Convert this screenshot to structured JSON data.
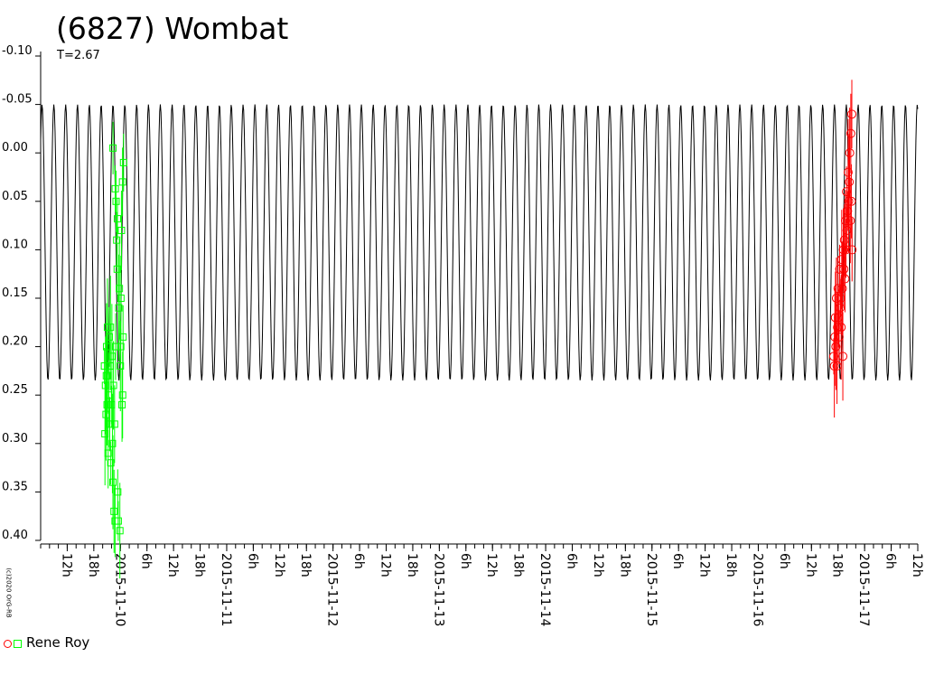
{
  "chart_data": {
    "type": "scatter",
    "title": "(6827) Wombat",
    "subtitle": "T=2.67",
    "copyright": "(c)2020 OrG-RB",
    "y_inverted": true,
    "ylim": [
      -0.1,
      0.4
    ],
    "y_ticks": [
      "-0.10",
      "-0.05",
      "0.00",
      "0.05",
      "0.10",
      "0.15",
      "0.20",
      "0.25",
      "0.30",
      "0.35",
      "0.40"
    ],
    "xlim": [
      "2015-11-09T06:00",
      "2015-11-17T12:00"
    ],
    "x_tick_labels": [
      "12h",
      "18h",
      "2015-11-10",
      "6h",
      "12h",
      "18h",
      "2015-11-11",
      "6h",
      "12h",
      "18h",
      "2015-11-12",
      "6h",
      "12h",
      "18h",
      "2015-11-13",
      "6h",
      "12h",
      "18h",
      "2015-11-14",
      "6h",
      "12h",
      "18h",
      "2015-11-15",
      "6h",
      "12h",
      "18h",
      "2015-11-16",
      "6h",
      "12h",
      "18h",
      "2015-11-17",
      "6h",
      "12h"
    ],
    "model_curve": {
      "period_hours": 2.67,
      "amplitude_min": -0.05,
      "amplitude_max": 0.235,
      "minimum_at": "2015-11-09T23:40",
      "color": "#000000"
    },
    "legend": {
      "label": "Rene Roy"
    },
    "series": [
      {
        "marker": "square",
        "color": "#00ff00",
        "points": [
          [
            "2015-11-09T20:24",
            0.22
          ],
          [
            "2015-11-09T20:31",
            0.29
          ],
          [
            "2015-11-09T20:38",
            0.24
          ],
          [
            "2015-11-09T20:46",
            0.27
          ],
          [
            "2015-11-09T20:53",
            0.2
          ],
          [
            "2015-11-09T21:00",
            0.26
          ],
          [
            "2015-11-09T21:07",
            0.23
          ],
          [
            "2015-11-09T21:14",
            0.31
          ],
          [
            "2015-11-09T21:22",
            0.25
          ],
          [
            "2015-11-09T21:29",
            0.19
          ],
          [
            "2015-11-09T21:36",
            0.28
          ],
          [
            "2015-11-09T21:43",
            0.22
          ],
          [
            "2015-11-09T21:50",
            0.32
          ],
          [
            "2015-11-09T21:58",
            0.26
          ],
          [
            "2015-11-09T22:05",
            0.21
          ],
          [
            "2015-11-09T22:12",
            0.3
          ],
          [
            "2015-11-09T22:19",
            0.34
          ],
          [
            "2015-11-09T22:26",
            0.24
          ],
          [
            "2015-11-09T22:34",
            0.37
          ],
          [
            "2015-11-09T22:41",
            0.28
          ],
          [
            "2015-11-09T22:48",
            0.38
          ],
          [
            "2015-11-09T22:55",
            0.2
          ],
          [
            "2015-11-09T23:02",
            0.05
          ],
          [
            "2015-11-09T23:10",
            0.09
          ],
          [
            "2015-11-09T23:17",
            0.12
          ],
          [
            "2015-11-09T23:24",
            0.35
          ],
          [
            "2015-11-09T23:31",
            0.38
          ],
          [
            "2015-11-09T23:38",
            0.16
          ],
          [
            "2015-11-09T23:46",
            0.14
          ],
          [
            "2015-11-09T23:53",
            0.39
          ],
          [
            "2015-11-10T00:00",
            0.22
          ],
          [
            "2015-11-10T00:07",
            0.15
          ],
          [
            "2015-11-10T00:14",
            0.08
          ],
          [
            "2015-11-10T00:22",
            0.26
          ],
          [
            "2015-11-10T00:29",
            0.03
          ],
          [
            "2015-11-10T00:36",
            0.19
          ],
          [
            "2015-11-10T00:43",
            0.01
          ],
          [
            "2015-11-09T22:20",
            -0.005
          ],
          [
            "2015-11-09T22:50",
            0.037
          ],
          [
            "2015-11-09T23:20",
            0.068
          ],
          [
            "2015-11-10T00:05",
            0.2
          ],
          [
            "2015-11-09T21:45",
            0.18
          ],
          [
            "2015-11-09T21:05",
            0.18
          ],
          [
            "2015-11-09T20:50",
            0.23
          ],
          [
            "2015-11-10T00:30",
            0.25
          ]
        ]
      },
      {
        "marker": "circle",
        "color": "#ff0000",
        "points": [
          [
            "2015-11-16T17:02",
            0.21
          ],
          [
            "2015-11-16T17:10",
            0.22
          ],
          [
            "2015-11-16T17:17",
            0.19
          ],
          [
            "2015-11-16T17:24",
            0.17
          ],
          [
            "2015-11-16T17:31",
            0.2
          ],
          [
            "2015-11-16T17:38",
            0.15
          ],
          [
            "2015-11-16T17:46",
            0.22
          ],
          [
            "2015-11-16T17:53",
            0.18
          ],
          [
            "2015-11-16T18:00",
            0.14
          ],
          [
            "2015-11-16T18:07",
            0.17
          ],
          [
            "2015-11-16T18:14",
            0.19
          ],
          [
            "2015-11-16T18:22",
            0.12
          ],
          [
            "2015-11-16T18:29",
            0.16
          ],
          [
            "2015-11-16T18:36",
            0.15
          ],
          [
            "2015-11-16T18:43",
            0.18
          ],
          [
            "2015-11-16T18:50",
            0.11
          ],
          [
            "2015-11-16T18:58",
            0.14
          ],
          [
            "2015-11-16T19:05",
            0.21
          ],
          [
            "2015-11-16T19:12",
            0.1
          ],
          [
            "2015-11-16T19:19",
            0.12
          ],
          [
            "2015-11-16T19:26",
            0.09
          ],
          [
            "2015-11-16T19:34",
            0.13
          ],
          [
            "2015-11-16T19:41",
            0.07
          ],
          [
            "2015-11-16T19:48",
            0.1
          ],
          [
            "2015-11-16T19:55",
            0.04
          ],
          [
            "2015-11-16T20:02",
            0.08
          ],
          [
            "2015-11-16T20:10",
            0.06
          ],
          [
            "2015-11-16T20:17",
            0.02
          ],
          [
            "2015-11-16T20:24",
            0.05
          ],
          [
            "2015-11-16T20:31",
            0.03
          ],
          [
            "2015-11-16T20:38",
            0.0
          ],
          [
            "2015-11-16T20:46",
            0.07
          ],
          [
            "2015-11-16T20:53",
            -0.02
          ],
          [
            "2015-11-16T21:00",
            0.05
          ],
          [
            "2015-11-16T21:07",
            -0.04
          ],
          [
            "2015-11-16T21:10",
            0.1
          ]
        ]
      }
    ]
  }
}
